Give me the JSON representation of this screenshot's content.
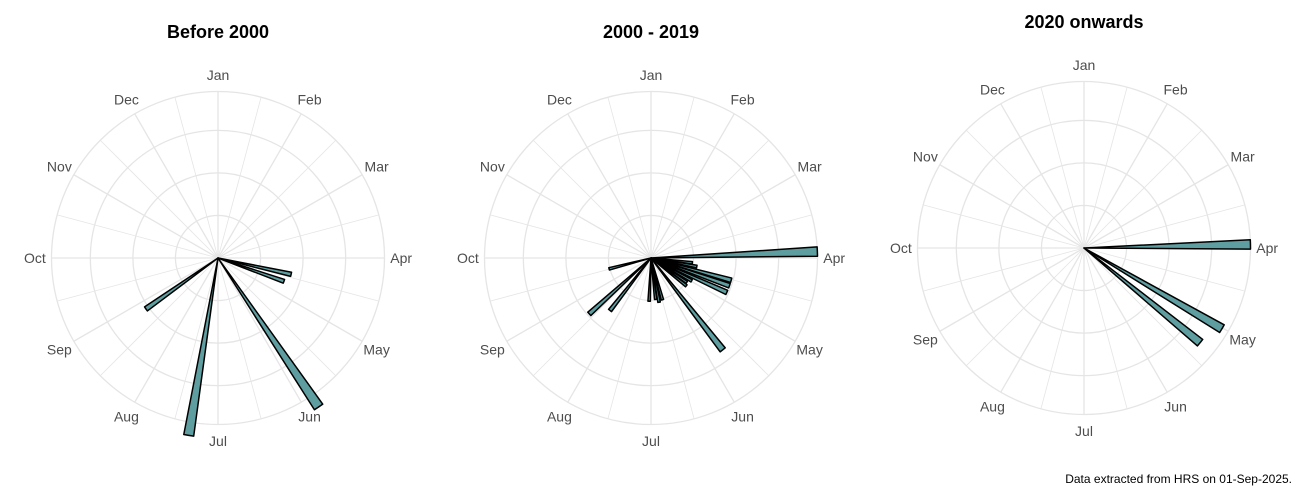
{
  "caption": "Data extracted from HRS on 01-Sep-2025.",
  "colors": {
    "fill": "#5f9ea0",
    "stroke": "#000000",
    "grid": "#e5e5e5",
    "label": "#4d4d4d"
  },
  "chart_data": [
    {
      "type": "bar",
      "projection": "polar",
      "title": "Before 2000",
      "grid": true,
      "months": [
        "Jan",
        "Feb",
        "Mar",
        "Apr",
        "May",
        "Jun",
        "Jul",
        "Aug",
        "Sep",
        "Oct",
        "Nov",
        "Dec"
      ],
      "bars": [
        {
          "date": "Apr 15",
          "value": 0.45
        },
        {
          "date": "Apr 22",
          "value": 0.42
        },
        {
          "date": "May 29",
          "value": 1.08
        },
        {
          "date": "Jul 12",
          "value": 1.08
        },
        {
          "date": "Aug 27",
          "value": 0.53
        }
      ]
    },
    {
      "type": "bar",
      "projection": "polar",
      "title": "2000 - 2019",
      "grid": true,
      "months": [
        "Jan",
        "Feb",
        "Mar",
        "Apr",
        "May",
        "Jun",
        "Jul",
        "Aug",
        "Sep",
        "Oct",
        "Nov",
        "Dec"
      ],
      "bars": [
        {
          "date": "Mar 31",
          "value": 1.0
        },
        {
          "date": "Apr 9",
          "value": 0.25
        },
        {
          "date": "Apr 13",
          "value": 0.28
        },
        {
          "date": "Apr 18",
          "value": 0.5
        },
        {
          "date": "Apr 22",
          "value": 0.5
        },
        {
          "date": "Apr 27",
          "value": 0.5
        },
        {
          "date": "May 2",
          "value": 0.28
        },
        {
          "date": "May 7",
          "value": 0.26
        },
        {
          "date": "May 11",
          "value": 0.27
        },
        {
          "date": "May 25",
          "value": 0.7
        },
        {
          "date": "Jun 17",
          "value": 0.26
        },
        {
          "date": "Jun 22",
          "value": 0.27
        },
        {
          "date": "Jun 26",
          "value": 0.25
        },
        {
          "date": "Jul 5",
          "value": 0.26
        },
        {
          "date": "Aug 10",
          "value": 0.4
        },
        {
          "date": "Aug 20",
          "value": 0.5
        },
        {
          "date": "Sep 17",
          "value": 0.26
        }
      ]
    },
    {
      "type": "bar",
      "projection": "polar",
      "title": "2020 onwards",
      "grid": true,
      "months": [
        "Jan",
        "Feb",
        "Mar",
        "Apr",
        "May",
        "Jun",
        "Jul",
        "Aug",
        "Sep",
        "Oct",
        "Nov",
        "Dec"
      ],
      "bars": [
        {
          "date": "Apr 1",
          "value": 1.0
        },
        {
          "date": "May 3",
          "value": 0.96
        },
        {
          "date": "May 12",
          "value": 0.9
        }
      ]
    }
  ]
}
